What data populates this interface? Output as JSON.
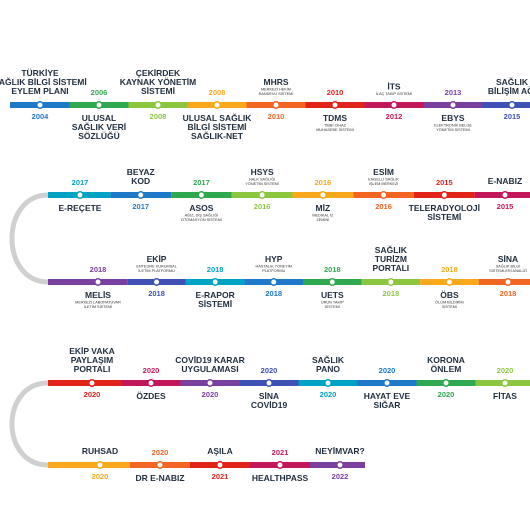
{
  "rows": [
    {
      "items": [
        {
          "label": [
            "TÜRKİYE",
            "SAĞLIK BİLGİ SİSTEMİ",
            "EYLEM PLANI"
          ],
          "sub": [],
          "year": "2004"
        },
        {
          "label": [
            "ULUSAL",
            "SAĞLIK VERİ",
            "SÖZLÜĞÜ"
          ],
          "sub": [],
          "year": "2006"
        },
        {
          "label": [
            "ÇEKİRDEK",
            "KAYNAK YÖNETİM",
            "SİSTEMİ"
          ],
          "sub": [],
          "year": "2008"
        },
        {
          "label": [
            "ULUSAL SAĞLIK",
            "BİLGİ SİSTEMİ",
            "SAĞLIK-NET"
          ],
          "sub": [],
          "year": "2008"
        },
        {
          "label": [
            "MHRS"
          ],
          "sub": [
            "MERKEZİ HEKİM",
            "RANDEVU SİSTEMİ"
          ],
          "year": "2010"
        },
        {
          "label": [
            "TDMS"
          ],
          "sub": [
            "TIBBİ CİHAZ",
            "MUHASEBE SİSTEMİ"
          ],
          "year": "2010"
        },
        {
          "label": [
            "İTS"
          ],
          "sub": [
            "İLAÇ TAKİP SİSTEMİ"
          ],
          "year": "2012"
        },
        {
          "label": [
            "EBYS"
          ],
          "sub": [
            "ELEKTRONİK BELGE",
            "YÖNETİM SİSTEMİ"
          ],
          "year": "2013"
        },
        {
          "label": [
            "SAĞLIK",
            "BİLİŞİM AĞI"
          ],
          "sub": [],
          "year": "2015"
        }
      ]
    },
    {
      "items": [
        {
          "label": [
            "E-REÇETE"
          ],
          "sub": [],
          "year": "2017"
        },
        {
          "label": [
            "BEYAZ",
            "KOD"
          ],
          "sub": [],
          "year": "2017"
        },
        {
          "label": [
            "ASOS"
          ],
          "sub": [
            "AĞIZ, DİŞ SAĞLIĞI",
            "OTOMASYON SİSTEMİ"
          ],
          "year": "2017"
        },
        {
          "label": [
            "HSYS"
          ],
          "sub": [
            "HALK SAĞLIĞI",
            "YÖNETİM SİSTEMİ"
          ],
          "year": "2016"
        },
        {
          "label": [
            "MİZ"
          ],
          "sub": [
            "MEDİKAL İZ",
            "ZEMİNİ"
          ],
          "year": "2016"
        },
        {
          "label": [
            "ESİM"
          ],
          "sub": [
            "ENGELLİ SAĞLIK",
            "İŞLEM MERKEZİ"
          ],
          "year": "2016"
        },
        {
          "label": [
            "TELERADYOLOJİ",
            "SİSTEMİ"
          ],
          "sub": [],
          "year": "2015"
        },
        {
          "label": [
            "E-NABIZ"
          ],
          "sub": [],
          "year": "2015"
        }
      ]
    },
    {
      "items": [
        {
          "label": [
            "MELİS"
          ],
          "sub": [
            "MERKEZİ LABORATUVAR",
            "İLETİM SİSTEMİ"
          ],
          "year": "2018"
        },
        {
          "label": [
            "EKİP"
          ],
          "sub": [
            "ENTEGRE KURUMSAL",
            "İLETİM PLATFORMU"
          ],
          "year": "2018"
        },
        {
          "label": [
            "E-RAPOR",
            "SİSTEMİ"
          ],
          "sub": [],
          "year": "2018"
        },
        {
          "label": [
            "HYP"
          ],
          "sub": [
            "HASTALIK YÖNETİM",
            "PLATFORMU"
          ],
          "year": "2018"
        },
        {
          "label": [
            "UETS"
          ],
          "sub": [
            "ÜRÜN TAKİP",
            "SİSTEMİ"
          ],
          "year": "2018"
        },
        {
          "label": [
            "SAĞLIK",
            "TURİZM",
            "PORTALI"
          ],
          "sub": [],
          "year": "2018"
        },
        {
          "label": [
            "ÖBS"
          ],
          "sub": [
            "ÖLÜM BİLDİRİM",
            "SİSTEMİ"
          ],
          "year": "2018"
        },
        {
          "label": [
            "SİNA"
          ],
          "sub": [
            "SAĞLIK BİLGİ",
            "SİSTEMLERİ ANALİZİ"
          ],
          "year": "2018"
        }
      ]
    },
    {
      "items": [
        {
          "label": [
            "EKİP VAKA",
            "PAYLAŞIM",
            "PORTALI"
          ],
          "sub": [],
          "year": "2020"
        },
        {
          "label": [
            "ÖZDES"
          ],
          "sub": [],
          "year": "2020"
        },
        {
          "label": [
            "COVİD19 KARAR",
            "UYGULAMASI"
          ],
          "sub": [],
          "year": "2020"
        },
        {
          "label": [
            "SİNA",
            "COVİD19"
          ],
          "sub": [],
          "year": "2020"
        },
        {
          "label": [
            "SAĞLIK",
            "PANO"
          ],
          "sub": [],
          "year": "2020"
        },
        {
          "label": [
            "HAYAT EVE",
            "SIĞAR"
          ],
          "sub": [],
          "year": "2020"
        },
        {
          "label": [
            "KORONA",
            "ÖNLEM"
          ],
          "sub": [],
          "year": "2020"
        },
        {
          "label": [
            "FİTAS"
          ],
          "sub": [],
          "year": "2020"
        }
      ]
    },
    {
      "items": [
        {
          "label": [
            "RUHSAD"
          ],
          "sub": [],
          "year": "2020"
        },
        {
          "label": [
            "DR E-NABIZ"
          ],
          "sub": [],
          "year": "2020"
        },
        {
          "label": [
            "AŞILA"
          ],
          "sub": [],
          "year": "2021"
        },
        {
          "label": [
            "HEALTHPASS"
          ],
          "sub": [],
          "year": "2021"
        },
        {
          "label": [
            "NEYİMVAR?"
          ],
          "sub": [],
          "year": "2022"
        }
      ]
    }
  ]
}
